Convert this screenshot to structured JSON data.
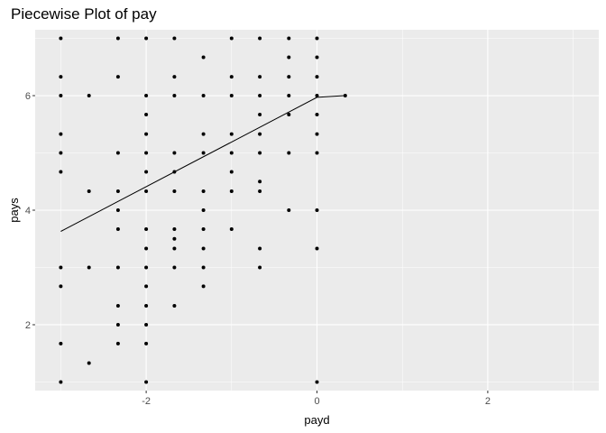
{
  "chart_data": {
    "type": "scatter",
    "title": "Piecewise Plot of pay",
    "xlabel": "payd",
    "ylabel": "pays",
    "xlim": [
      -3.3,
      3.3
    ],
    "ylim": [
      0.85,
      7.15
    ],
    "x_ticks": [
      -2,
      0,
      2
    ],
    "y_ticks": [
      2,
      4,
      6
    ],
    "x_tick_labels": [
      "-2",
      "0",
      "2"
    ],
    "y_tick_labels": [
      "2",
      "4",
      "6"
    ],
    "grid": true,
    "legend": "none",
    "colors": {
      "panel": "#ebebeb",
      "grid": "#ffffff",
      "points": "#000000",
      "line": "#000000",
      "tick": "#4d4d4d"
    },
    "points": [
      {
        "x": -3,
        "y": 7
      },
      {
        "x": -3,
        "y": 6.33
      },
      {
        "x": -3,
        "y": 6
      },
      {
        "x": -3,
        "y": 5.33
      },
      {
        "x": -3,
        "y": 5
      },
      {
        "x": -3,
        "y": 4.67
      },
      {
        "x": -3,
        "y": 3
      },
      {
        "x": -3,
        "y": 2.67
      },
      {
        "x": -3,
        "y": 1.67
      },
      {
        "x": -3,
        "y": 1
      },
      {
        "x": -2.67,
        "y": 6
      },
      {
        "x": -2.67,
        "y": 4.33
      },
      {
        "x": -2.67,
        "y": 3
      },
      {
        "x": -2.67,
        "y": 1.33
      },
      {
        "x": -2.33,
        "y": 7
      },
      {
        "x": -2.33,
        "y": 6.33
      },
      {
        "x": -2.33,
        "y": 5
      },
      {
        "x": -2.33,
        "y": 4.33
      },
      {
        "x": -2.33,
        "y": 4
      },
      {
        "x": -2.33,
        "y": 3.67
      },
      {
        "x": -2.33,
        "y": 3
      },
      {
        "x": -2.33,
        "y": 2.33
      },
      {
        "x": -2.33,
        "y": 2
      },
      {
        "x": -2.33,
        "y": 1.67
      },
      {
        "x": -2,
        "y": 7
      },
      {
        "x": -2,
        "y": 6
      },
      {
        "x": -2,
        "y": 5.67
      },
      {
        "x": -2,
        "y": 5.33
      },
      {
        "x": -2,
        "y": 5
      },
      {
        "x": -2,
        "y": 4.67
      },
      {
        "x": -2,
        "y": 4.33
      },
      {
        "x": -2,
        "y": 3.67
      },
      {
        "x": -2,
        "y": 3.33
      },
      {
        "x": -2,
        "y": 3
      },
      {
        "x": -2,
        "y": 2.67
      },
      {
        "x": -2,
        "y": 2.33
      },
      {
        "x": -2,
        "y": 2
      },
      {
        "x": -2,
        "y": 1.67
      },
      {
        "x": -2,
        "y": 1
      },
      {
        "x": -1.67,
        "y": 7
      },
      {
        "x": -1.67,
        "y": 6.33
      },
      {
        "x": -1.67,
        "y": 6
      },
      {
        "x": -1.67,
        "y": 5
      },
      {
        "x": -1.67,
        "y": 4.67
      },
      {
        "x": -1.67,
        "y": 4.33
      },
      {
        "x": -1.67,
        "y": 3.67
      },
      {
        "x": -1.67,
        "y": 3.5
      },
      {
        "x": -1.67,
        "y": 3.33
      },
      {
        "x": -1.67,
        "y": 3
      },
      {
        "x": -1.67,
        "y": 2.33
      },
      {
        "x": -1.33,
        "y": 6.67
      },
      {
        "x": -1.33,
        "y": 6
      },
      {
        "x": -1.33,
        "y": 5.33
      },
      {
        "x": -1.33,
        "y": 5
      },
      {
        "x": -1.33,
        "y": 4.33
      },
      {
        "x": -1.33,
        "y": 4
      },
      {
        "x": -1.33,
        "y": 3.67
      },
      {
        "x": -1.33,
        "y": 3.33
      },
      {
        "x": -1.33,
        "y": 3
      },
      {
        "x": -1.33,
        "y": 2.67
      },
      {
        "x": -1,
        "y": 7
      },
      {
        "x": -1,
        "y": 6.33
      },
      {
        "x": -1,
        "y": 6
      },
      {
        "x": -1,
        "y": 5.33
      },
      {
        "x": -1,
        "y": 5
      },
      {
        "x": -1,
        "y": 4.67
      },
      {
        "x": -1,
        "y": 4.33
      },
      {
        "x": -1,
        "y": 3.67
      },
      {
        "x": -0.67,
        "y": 7
      },
      {
        "x": -0.67,
        "y": 6.33
      },
      {
        "x": -0.67,
        "y": 6
      },
      {
        "x": -0.67,
        "y": 5.67
      },
      {
        "x": -0.67,
        "y": 5.33
      },
      {
        "x": -0.67,
        "y": 5
      },
      {
        "x": -0.67,
        "y": 4.5
      },
      {
        "x": -0.67,
        "y": 4.33
      },
      {
        "x": -0.67,
        "y": 3.33
      },
      {
        "x": -0.67,
        "y": 3
      },
      {
        "x": -0.33,
        "y": 7
      },
      {
        "x": -0.33,
        "y": 6.67
      },
      {
        "x": -0.33,
        "y": 6.33
      },
      {
        "x": -0.33,
        "y": 6
      },
      {
        "x": -0.33,
        "y": 5.67
      },
      {
        "x": -0.33,
        "y": 5
      },
      {
        "x": -0.33,
        "y": 4
      },
      {
        "x": 0,
        "y": 7
      },
      {
        "x": 0,
        "y": 6.67
      },
      {
        "x": 0,
        "y": 6.33
      },
      {
        "x": 0,
        "y": 6
      },
      {
        "x": 0,
        "y": 5.67
      },
      {
        "x": 0,
        "y": 5.33
      },
      {
        "x": 0,
        "y": 5
      },
      {
        "x": 0,
        "y": 4
      },
      {
        "x": 0,
        "y": 3.33
      },
      {
        "x": 0,
        "y": 1
      },
      {
        "x": 0.33,
        "y": 6
      }
    ],
    "line": [
      {
        "x": -3,
        "y": 3.63
      },
      {
        "x": 0,
        "y": 5.97
      },
      {
        "x": 0.33,
        "y": 6.0
      }
    ]
  }
}
